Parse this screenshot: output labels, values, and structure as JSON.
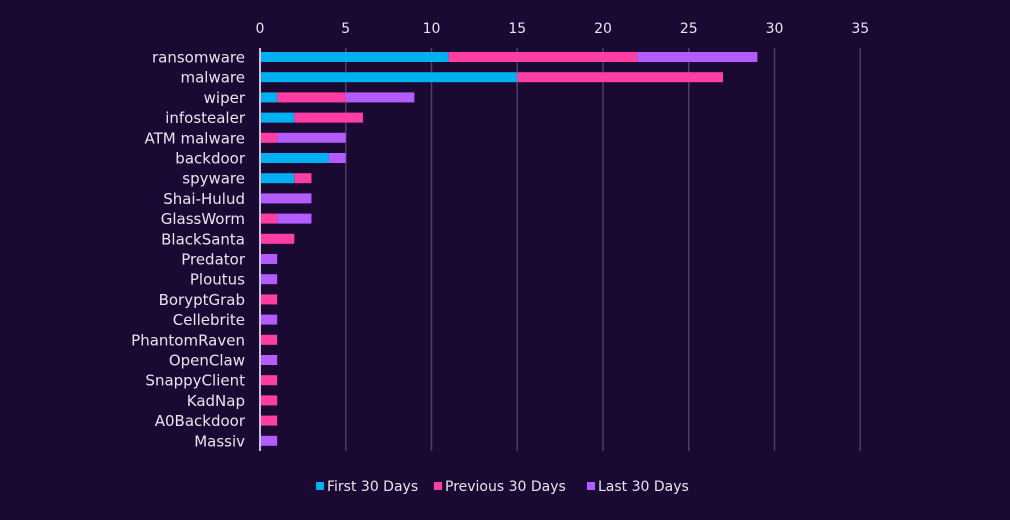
{
  "chart_data": {
    "type": "bar",
    "orientation": "horizontal",
    "stacked": true,
    "title": "",
    "xlabel": "",
    "ylabel": "",
    "xlim": [
      0,
      35
    ],
    "x_ticks": [
      0,
      5,
      10,
      15,
      20,
      25,
      30,
      35
    ],
    "grid": true,
    "legend_position": "bottom",
    "categories": [
      "ransomware",
      "malware",
      "wiper",
      "infostealer",
      "ATM malware",
      "backdoor",
      "spyware",
      "Shai-Hulud",
      "GlassWorm",
      "BlackSanta",
      "Predator",
      "Ploutus",
      "BoryptGrab",
      "Cellebrite",
      "PhantomRaven",
      "OpenClaw",
      "SnappyClient",
      "KadNap",
      "A0Backdoor",
      "Massiv"
    ],
    "series": [
      {
        "name": "First 30 Days",
        "color": "#00b0f0",
        "values": [
          11,
          15,
          1,
          2,
          0,
          4,
          2,
          0,
          0,
          0,
          0,
          0,
          0,
          0,
          0,
          0,
          0,
          0,
          0,
          0
        ]
      },
      {
        "name": "Previous 30 Days",
        "color": "#ff3ea5",
        "values": [
          11,
          12,
          4,
          4,
          1,
          0,
          1,
          0,
          1,
          2,
          0,
          0,
          1,
          0,
          1,
          0,
          1,
          1,
          1,
          0
        ]
      },
      {
        "name": "Last 30 Days",
        "color": "#b45cff",
        "values": [
          7,
          0,
          4,
          0,
          4,
          1,
          0,
          3,
          2,
          0,
          1,
          1,
          0,
          1,
          0,
          1,
          0,
          0,
          0,
          1
        ]
      }
    ]
  },
  "colors": {
    "background": "#1a0a33",
    "grid": "#4a3d66",
    "axis": "#c8c2d6",
    "text": "#e8e4ef"
  }
}
